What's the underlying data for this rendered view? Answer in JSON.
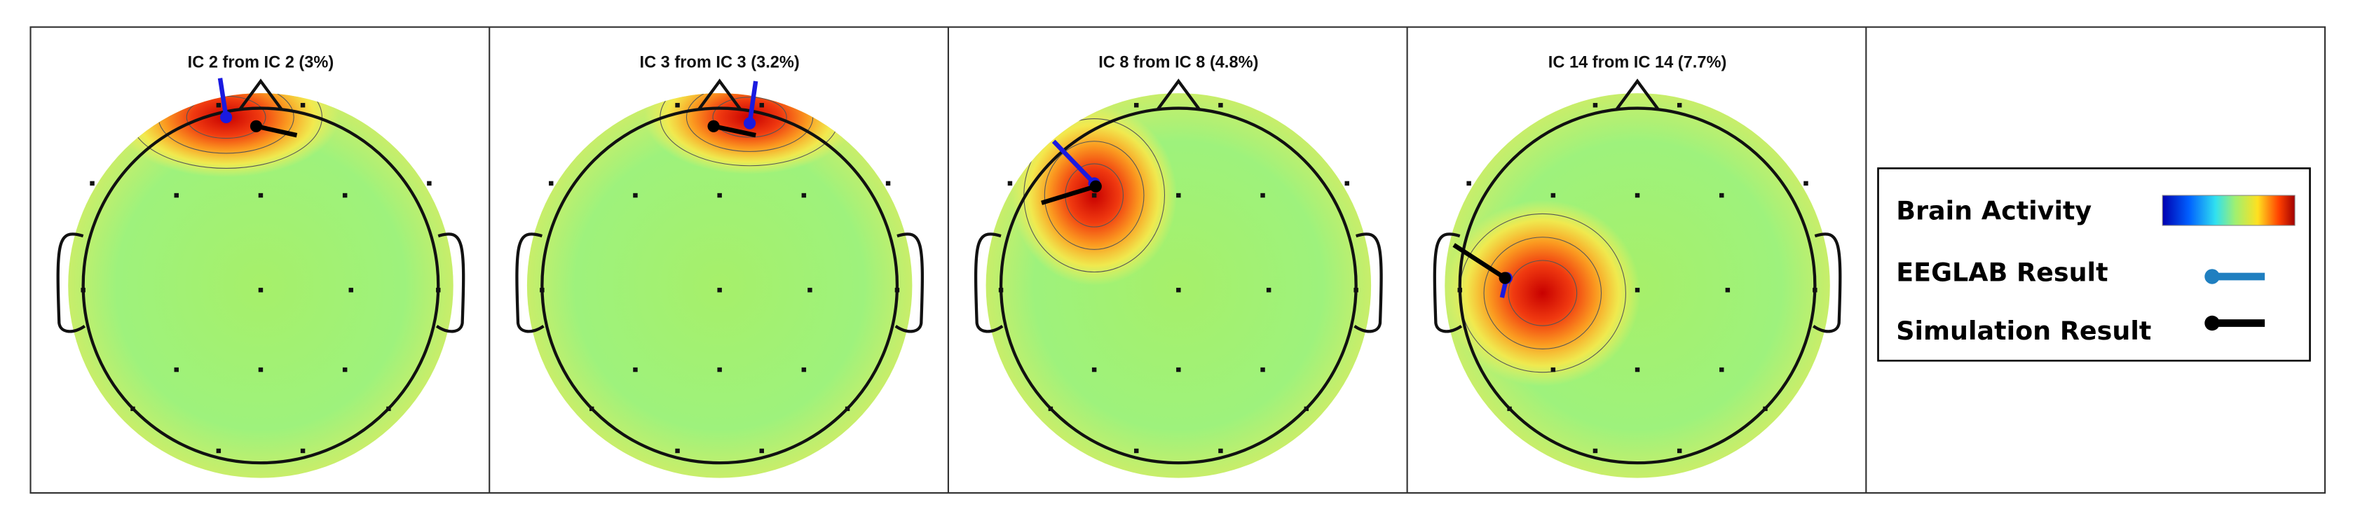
{
  "panels": [
    {
      "title": "IC 2 from IC 2 (3%)"
    },
    {
      "title": "IC 3 from IC 3 (3.2%)"
    },
    {
      "title": "IC 8 from IC 8 (4.8%)"
    },
    {
      "title": "IC 14 from IC 14 (7.7%)"
    }
  ],
  "legend": {
    "items": [
      "Brain Activity",
      "EEGLAB Result",
      "Simulation Result"
    ]
  }
}
